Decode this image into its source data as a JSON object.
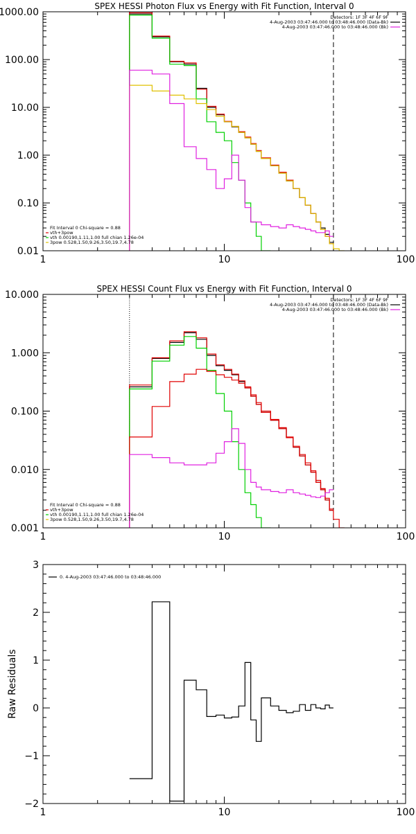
{
  "chart_data": [
    {
      "type": "line",
      "title": "SPEX HESSI Photon Flux vs Energy with Fit Function, Interval 0",
      "xlabel": "",
      "ylabel": "",
      "xscale": "log",
      "yscale": "log",
      "xlim": [
        1,
        100
      ],
      "ylim": [
        0.01,
        1000
      ],
      "xticks": [
        "1",
        "10",
        "100"
      ],
      "yticks": [
        "0.01",
        "0.10",
        "1.00",
        "10.00",
        "100.00",
        "1000.00"
      ],
      "vlines": [
        {
          "x": 3.0,
          "style": "dotted",
          "color": "#000000"
        },
        {
          "x": 40.0,
          "style": "dashed",
          "color": "#000000"
        }
      ],
      "legend_top": {
        "position": "top-right",
        "entries": [
          {
            "text": "Detectors: 1F 3F 4F 6F 9F",
            "color": ""
          },
          {
            "text": "4-Aug-2003 03:47:46.000 to 03:48:46.000 (Data-Bk)",
            "color": "#000000"
          },
          {
            "text": "4-Aug-2003 03:47:46.000 to 03:48:46.000 (Bk)",
            "color": "#e020e0"
          }
        ]
      },
      "legend_bottom": {
        "position": "bottom-left",
        "entries": [
          {
            "text": "Fit Interval  0    Chi-square = 0.88",
            "color": ""
          },
          {
            "text": "vth+3pow",
            "color": "#e00000"
          },
          {
            "text": "vth 0.00190,1.11,1.00  full chian 1.26e-04",
            "color": "#00d000"
          },
          {
            "text": "3pow 0.528,1.50,9.26,3.50,19.7,4.78",
            "color": "#e0c000"
          }
        ]
      },
      "bin_edges": [
        3.0,
        4.0,
        5.0,
        6.0,
        7.0,
        8.0,
        9.0,
        10.0,
        11.0,
        12.0,
        13.0,
        14.0,
        15.0,
        16.0,
        18.0,
        20.0,
        22.0,
        24.0,
        26.0,
        28.0,
        30.0,
        32.0,
        34.0,
        36.0,
        38.0,
        40.0,
        43.0,
        46.0
      ],
      "series": [
        {
          "name": "Data-Bk",
          "color": "#000000",
          "values": [
            900,
            300,
            90,
            80,
            25,
            10,
            7,
            5,
            3.9,
            3.0,
            2.3,
            1.7,
            1.2,
            0.85,
            0.6,
            0.42,
            0.29,
            0.2,
            0.13,
            0.09,
            0.06,
            0.04,
            0.03,
            0.022,
            0.015,
            null,
            null
          ]
        },
        {
          "name": "vth+3pow",
          "color": "#e00000",
          "values": [
            950,
            310,
            92,
            85,
            24,
            10.5,
            7.2,
            5.1,
            4.0,
            3.1,
            2.4,
            1.75,
            1.25,
            0.88,
            0.62,
            0.44,
            0.3,
            0.2,
            0.13,
            0.09,
            0.06,
            0.04,
            0.028,
            0.02,
            0.014,
            null,
            null
          ]
        },
        {
          "name": "vth",
          "color": "#00d000",
          "values": [
            850,
            280,
            80,
            75,
            15,
            5,
            3,
            2,
            0.7,
            0.3,
            0.1,
            0.04,
            0.02,
            0.009,
            null,
            null,
            null,
            null,
            null,
            null,
            null,
            null,
            null,
            null,
            null,
            null,
            null
          ]
        },
        {
          "name": "3pow",
          "color": "#e0c000",
          "values": [
            29,
            22,
            18,
            15,
            12,
            9,
            6.5,
            5,
            4,
            3.0,
            2.3,
            1.7,
            1.2,
            0.85,
            0.6,
            0.42,
            0.29,
            0.2,
            0.13,
            0.09,
            0.06,
            0.04,
            0.028,
            0.02,
            0.014,
            0.011,
            0.009
          ]
        },
        {
          "name": "Bk",
          "color": "#e020e0",
          "values": [
            60,
            50,
            12,
            1.5,
            0.85,
            0.5,
            0.2,
            0.32,
            1.0,
            0.3,
            0.08,
            0.04,
            0.04,
            0.035,
            0.032,
            0.03,
            0.035,
            0.032,
            0.03,
            0.028,
            0.026,
            0.024,
            0.024,
            0.026,
            0.02,
            null,
            null
          ]
        }
      ]
    },
    {
      "type": "line",
      "title": "SPEX HESSI Count Flux vs Energy with Fit Function, Interval 0",
      "xlabel": "",
      "ylabel": "",
      "xscale": "log",
      "yscale": "log",
      "xlim": [
        1,
        100
      ],
      "ylim": [
        0.001,
        10
      ],
      "xticks": [
        "1",
        "10",
        "100"
      ],
      "yticks": [
        "0.001",
        "0.010",
        "0.100",
        "1.000",
        "10.000"
      ],
      "vlines": [
        {
          "x": 3.0,
          "style": "dotted",
          "color": "#000000"
        },
        {
          "x": 40.0,
          "style": "dashed",
          "color": "#000000"
        }
      ],
      "legend_top": {
        "position": "top-right",
        "entries": [
          {
            "text": "Detectors: 1F 3F 4F 6F 9F",
            "color": ""
          },
          {
            "text": "4-Aug-2003 03:47:46.000 to 03:48:46.000 (Data-Bk)",
            "color": "#000000"
          },
          {
            "text": "4-Aug-2003 03:47:46.000 to 03:48:46.000 (Bk)",
            "color": "#e020e0"
          }
        ]
      },
      "legend_bottom": {
        "position": "bottom-left",
        "entries": [
          {
            "text": "Fit Interval  0    Chi-square = 0.88",
            "color": ""
          },
          {
            "text": "vth+3pow",
            "color": "#e00000"
          },
          {
            "text": "vth 0.00190,1.11,1.00  full chian 1.26e-04",
            "color": "#00d000"
          },
          {
            "text": "3pow 0.528,1.50,9.26,3.50,19.7,4.78",
            "color": "#e0c000"
          }
        ]
      },
      "bin_edges": [
        3.0,
        4.0,
        5.0,
        6.0,
        7.0,
        8.0,
        9.0,
        10.0,
        11.0,
        12.0,
        13.0,
        14.0,
        15.0,
        16.0,
        18.0,
        20.0,
        22.0,
        24.0,
        26.0,
        28.0,
        30.0,
        32.0,
        34.0,
        36.0,
        38.0,
        40.0,
        43.0,
        46.0
      ],
      "series": [
        {
          "name": "Data-Bk",
          "color": "#000000",
          "values": [
            0.26,
            0.8,
            1.5,
            2.2,
            1.7,
            0.9,
            0.6,
            0.5,
            0.42,
            0.32,
            0.25,
            0.18,
            0.13,
            0.095,
            0.07,
            0.05,
            0.035,
            0.024,
            0.017,
            0.012,
            0.009,
            0.006,
            0.0045,
            0.003,
            0.002,
            null,
            null
          ]
        },
        {
          "name": "vth+3pow",
          "color": "#e00000",
          "values": [
            0.28,
            0.82,
            1.6,
            2.3,
            1.8,
            0.95,
            0.62,
            0.52,
            0.43,
            0.33,
            0.26,
            0.19,
            0.14,
            0.1,
            0.072,
            0.052,
            0.036,
            0.025,
            0.018,
            0.013,
            0.0095,
            0.0065,
            0.0047,
            0.0032,
            0.0021,
            null,
            null
          ]
        },
        {
          "name": "vth",
          "color": "#00d000",
          "values": [
            0.24,
            0.72,
            1.35,
            1.9,
            1.2,
            0.5,
            0.2,
            0.1,
            0.03,
            0.01,
            0.004,
            0.0025,
            0.0015,
            0.001,
            null,
            null,
            null,
            null,
            null,
            null,
            null,
            null,
            null,
            null,
            null,
            null,
            null
          ]
        },
        {
          "name": "3pow",
          "color": "#e00000",
          "values": [
            0.036,
            0.12,
            0.32,
            0.43,
            0.52,
            0.48,
            0.42,
            0.38,
            0.34,
            0.3,
            0.25,
            0.18,
            0.13,
            0.095,
            0.07,
            0.05,
            0.035,
            0.024,
            0.017,
            0.012,
            0.009,
            0.006,
            0.0045,
            0.003,
            0.002,
            0.0014,
            0.001
          ]
        },
        {
          "name": "Bk",
          "color": "#e020e0",
          "values": [
            0.018,
            0.016,
            0.013,
            0.012,
            0.012,
            0.013,
            0.019,
            0.03,
            0.05,
            0.028,
            0.01,
            0.006,
            0.005,
            0.0045,
            0.0042,
            0.004,
            0.0045,
            0.004,
            0.0038,
            0.0036,
            0.0034,
            0.0033,
            0.0035,
            0.004,
            0.0045,
            null,
            null
          ]
        }
      ]
    },
    {
      "type": "line",
      "title": "",
      "xlabel": "",
      "ylabel": "Raw Residuals",
      "xscale": "log",
      "yscale": "linear",
      "xlim": [
        1,
        100
      ],
      "ylim": [
        -2,
        3
      ],
      "xticks": [
        "1",
        "10",
        "100"
      ],
      "yticks": [
        "−2",
        "−1",
        "0",
        "1",
        "2",
        "3"
      ],
      "legend_top": {
        "position": "top-left",
        "entries": [
          {
            "text": "0.  4-Aug-2003 03:47:46.000 to 03:48:46.000",
            "color": "#000000"
          }
        ]
      },
      "bin_edges": [
        3.0,
        4.0,
        5.0,
        6.0,
        7.0,
        8.0,
        9.0,
        10.0,
        11.0,
        12.0,
        13.0,
        14.0,
        15.0,
        16.0,
        18.0,
        20.0,
        22.0,
        24.0,
        26.0,
        28.0,
        30.0,
        32.0,
        34.0,
        36.0,
        38.0,
        40.0
      ],
      "series": [
        {
          "name": "residuals",
          "color": "#000000",
          "values": [
            -1.48,
            2.22,
            -1.95,
            0.58,
            0.38,
            -0.18,
            -0.15,
            -0.21,
            -0.19,
            0.04,
            0.95,
            -0.25,
            -0.7,
            0.21,
            0.04,
            -0.05,
            -0.1,
            -0.07,
            0.07,
            -0.05,
            0.07,
            0.0,
            -0.02,
            0.06,
            0.0
          ]
        }
      ]
    }
  ]
}
